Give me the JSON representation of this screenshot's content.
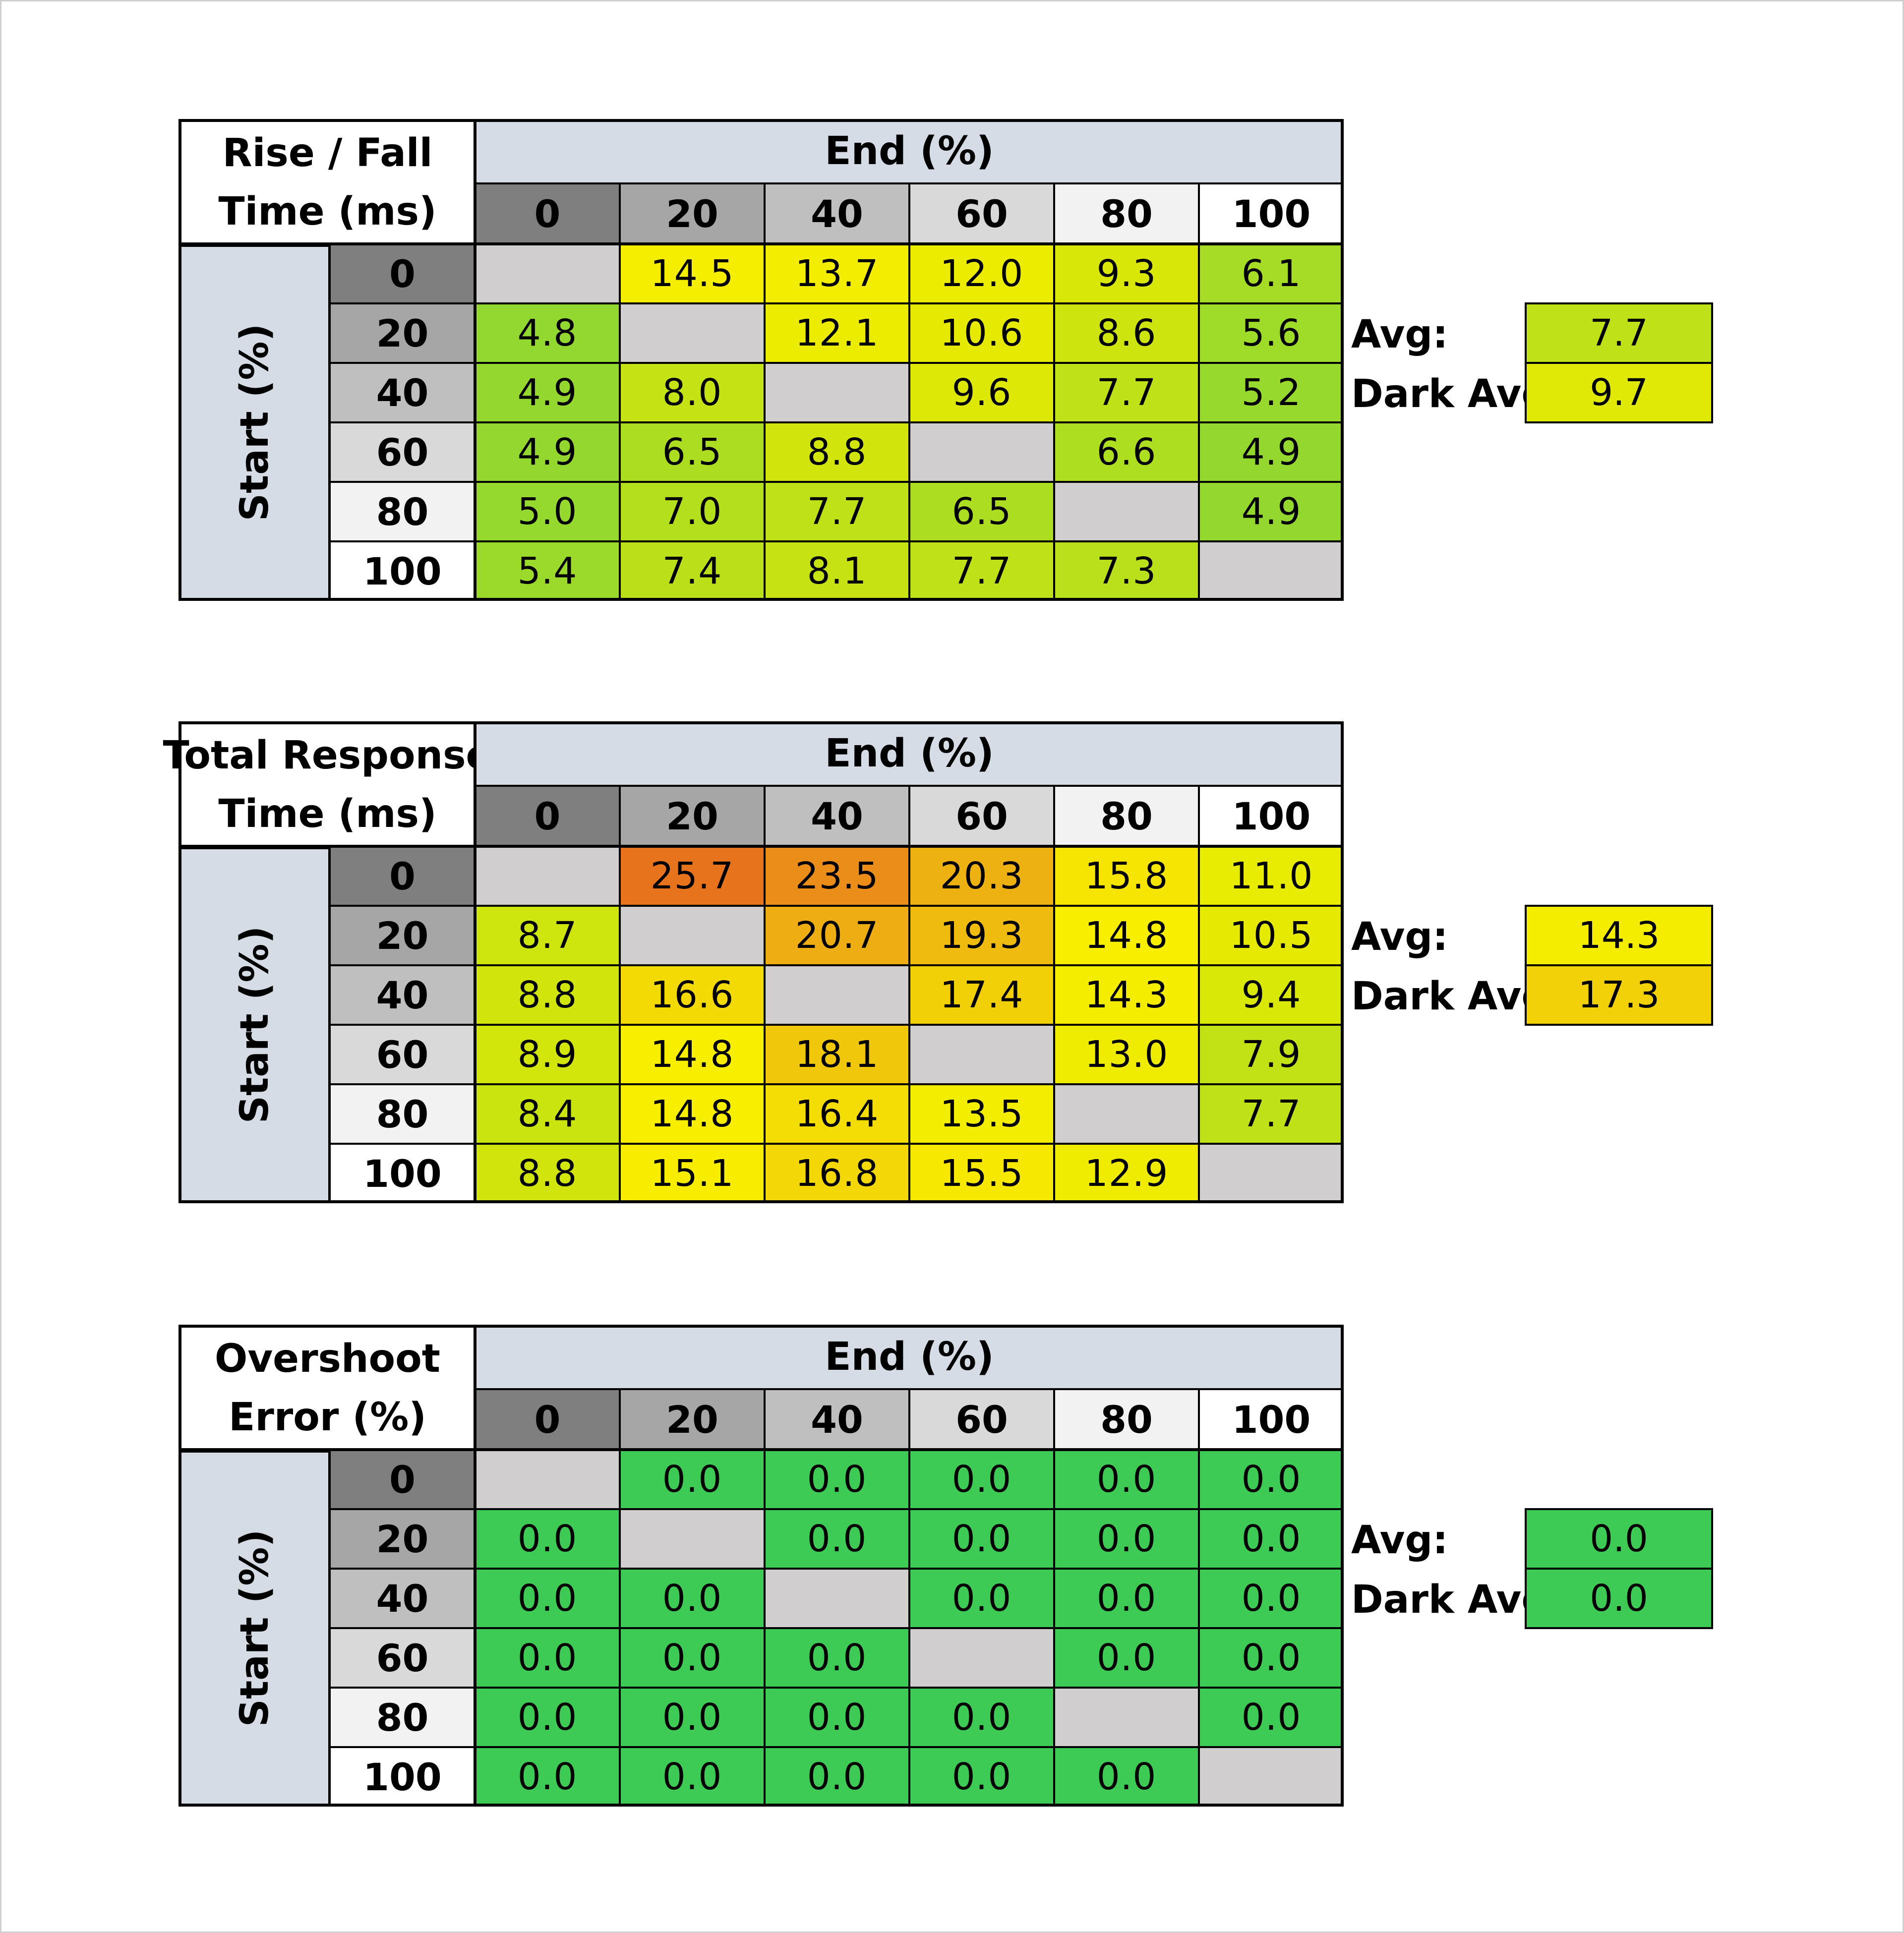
{
  "chart_data": [
    {
      "type": "table",
      "title_lines": [
        "Rise / Fall",
        "Time (ms)"
      ],
      "end_label": "End (%)",
      "start_label": "Start (%)",
      "end_levels": [
        "0",
        "20",
        "40",
        "60",
        "80",
        "100"
      ],
      "start_levels": [
        "0",
        "20",
        "40",
        "60",
        "80",
        "100"
      ],
      "cells": [
        [
          "",
          "14.5",
          "13.7",
          "12.0",
          "9.3",
          "6.1"
        ],
        [
          "4.8",
          "",
          "12.1",
          "10.6",
          "8.6",
          "5.6"
        ],
        [
          "4.9",
          "8.0",
          "",
          "9.6",
          "7.7",
          "5.2"
        ],
        [
          "4.9",
          "6.5",
          "8.8",
          "",
          "6.6",
          "4.9"
        ],
        [
          "5.0",
          "7.0",
          "7.7",
          "6.5",
          "",
          "4.9"
        ],
        [
          "5.4",
          "7.4",
          "8.1",
          "7.7",
          "7.3",
          ""
        ]
      ],
      "avg_label": "Avg:",
      "avg_value": "7.7",
      "dark_avg_label": "Dark Avg:",
      "dark_avg_value": "9.7",
      "color_scale": "response-time"
    },
    {
      "type": "table",
      "title_lines": [
        "Total Response",
        "Time (ms)"
      ],
      "end_label": "End (%)",
      "start_label": "Start (%)",
      "end_levels": [
        "0",
        "20",
        "40",
        "60",
        "80",
        "100"
      ],
      "start_levels": [
        "0",
        "20",
        "40",
        "60",
        "80",
        "100"
      ],
      "cells": [
        [
          "",
          "25.7",
          "23.5",
          "20.3",
          "15.8",
          "11.0"
        ],
        [
          "8.7",
          "",
          "20.7",
          "19.3",
          "14.8",
          "10.5"
        ],
        [
          "8.8",
          "16.6",
          "",
          "17.4",
          "14.3",
          "9.4"
        ],
        [
          "8.9",
          "14.8",
          "18.1",
          "",
          "13.0",
          "7.9"
        ],
        [
          "8.4",
          "14.8",
          "16.4",
          "13.5",
          "",
          "7.7"
        ],
        [
          "8.8",
          "15.1",
          "16.8",
          "15.5",
          "12.9",
          ""
        ]
      ],
      "avg_label": "Avg:",
      "avg_value": "14.3",
      "dark_avg_label": "Dark Avg:",
      "dark_avg_value": "17.3",
      "color_scale": "response-time"
    },
    {
      "type": "table",
      "title_lines": [
        "Overshoot",
        "Error (%)"
      ],
      "end_label": "End (%)",
      "start_label": "Start (%)",
      "end_levels": [
        "0",
        "20",
        "40",
        "60",
        "80",
        "100"
      ],
      "start_levels": [
        "0",
        "20",
        "40",
        "60",
        "80",
        "100"
      ],
      "cells": [
        [
          "",
          "0.0",
          "0.0",
          "0.0",
          "0.0",
          "0.0"
        ],
        [
          "0.0",
          "",
          "0.0",
          "0.0",
          "0.0",
          "0.0"
        ],
        [
          "0.0",
          "0.0",
          "",
          "0.0",
          "0.0",
          "0.0"
        ],
        [
          "0.0",
          "0.0",
          "0.0",
          "",
          "0.0",
          "0.0"
        ],
        [
          "0.0",
          "0.0",
          "0.0",
          "0.0",
          "",
          "0.0"
        ],
        [
          "0.0",
          "0.0",
          "0.0",
          "0.0",
          "0.0",
          ""
        ]
      ],
      "avg_label": "Avg:",
      "avg_value": "0.0",
      "dark_avg_label": "Dark Avg:",
      "dark_avg_value": "0.0",
      "color_scale": "overshoot"
    }
  ],
  "colors": {
    "level_shades": [
      "#7f7f7f",
      "#a6a6a6",
      "#bfbfbf",
      "#d9d9d9",
      "#f2f2f2",
      "#ffffff"
    ],
    "diagonal": "#d0cece",
    "axis_header": "#d6dce5",
    "overshoot_green": "#3ecb55"
  }
}
